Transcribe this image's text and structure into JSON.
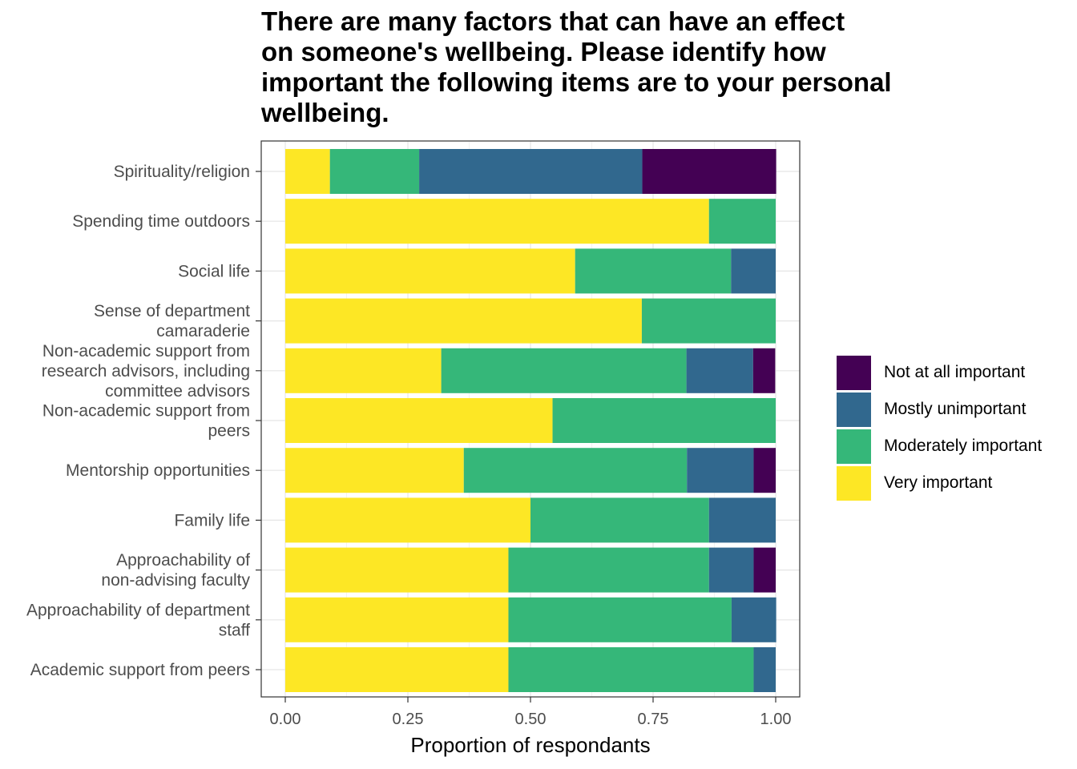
{
  "chart_data": {
    "type": "bar",
    "orientation": "horizontal",
    "stacked": true,
    "title_lines": [
      "There are many factors that can have an effect",
      "on someone's wellbeing. Please identify how",
      "important the following items are to your personal",
      "wellbeing."
    ],
    "xlabel": "Proportion of respondants",
    "ylabel": "",
    "xlim": [
      0,
      1
    ],
    "xticks": [
      "0.00",
      "0.25",
      "0.50",
      "0.75",
      "1.00"
    ],
    "xtick_values": [
      0,
      0.25,
      0.5,
      0.75,
      1.0
    ],
    "grid": true,
    "legend_position": "right",
    "categories": [
      {
        "label_lines": [
          "Spirituality/religion"
        ]
      },
      {
        "label_lines": [
          "Spending time outdoors"
        ]
      },
      {
        "label_lines": [
          "Social life"
        ]
      },
      {
        "label_lines": [
          "Sense of department",
          "camaraderie"
        ]
      },
      {
        "label_lines": [
          "Non-academic support from",
          "research advisors, including",
          "committee advisors"
        ]
      },
      {
        "label_lines": [
          "Non-academic support from",
          "peers"
        ]
      },
      {
        "label_lines": [
          "Mentorship opportunities"
        ]
      },
      {
        "label_lines": [
          "Family life"
        ]
      },
      {
        "label_lines": [
          "Approachability of",
          "non-advising faculty"
        ]
      },
      {
        "label_lines": [
          "Approachability of department",
          "staff"
        ]
      },
      {
        "label_lines": [
          "Academic support from peers"
        ]
      }
    ],
    "series": [
      {
        "name": "Very important",
        "color": "#FDE725",
        "values": [
          0.091,
          0.864,
          0.591,
          0.727,
          0.318,
          0.545,
          0.364,
          0.5,
          0.455,
          0.455,
          0.455
        ]
      },
      {
        "name": "Moderately important",
        "color": "#35B779",
        "values": [
          0.182,
          0.136,
          0.318,
          0.273,
          0.5,
          0.455,
          0.455,
          0.364,
          0.409,
          0.455,
          0.5
        ]
      },
      {
        "name": "Mostly unimportant",
        "color": "#31688E",
        "values": [
          0.455,
          0,
          0.091,
          0,
          0.136,
          0,
          0.136,
          0.136,
          0.091,
          0.091,
          0.045
        ]
      },
      {
        "name": "Not at all important",
        "color": "#440154",
        "values": [
          0.273,
          0,
          0,
          0,
          0.045,
          0,
          0.045,
          0,
          0.045,
          0,
          0
        ]
      }
    ],
    "legend_order": [
      "Not at all important",
      "Mostly unimportant",
      "Moderately important",
      "Very important"
    ]
  }
}
